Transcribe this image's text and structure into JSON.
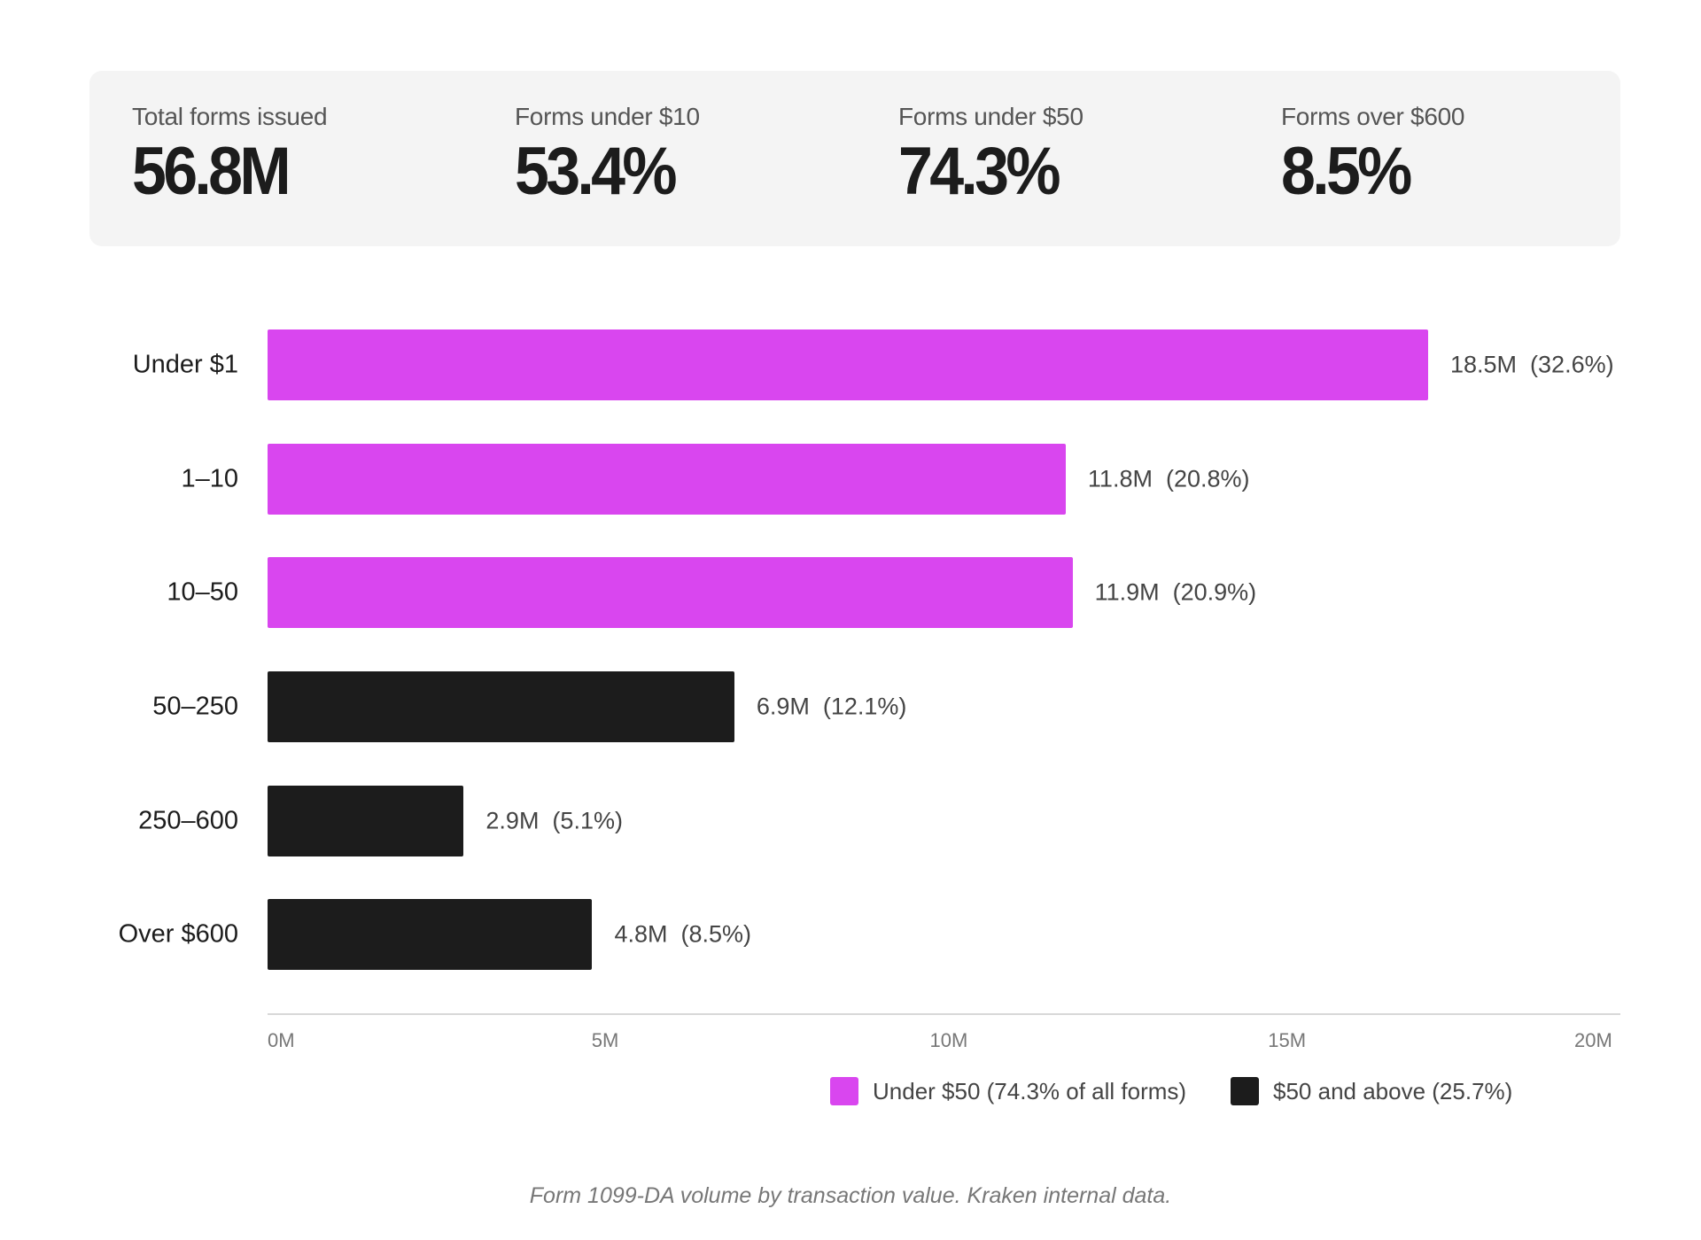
{
  "stats": [
    {
      "label": "Total forms issued",
      "value": "56.8M"
    },
    {
      "label": "Forms under $10",
      "value": "53.4%"
    },
    {
      "label": "Forms under $50",
      "value": "74.3%"
    },
    {
      "label": "Forms over $600",
      "value": "8.5%"
    }
  ],
  "colors": {
    "under_50": "#D946EF",
    "over_50": "#1C1C1C",
    "card_bg": "#F4F4F4"
  },
  "chart_data": {
    "type": "bar",
    "orientation": "horizontal",
    "categories": [
      "Under $1",
      "1–10",
      "10–50",
      "50–250",
      "250–600",
      "Over $600"
    ],
    "values": [
      18.5,
      11.8,
      11.9,
      6.9,
      2.9,
      4.8
    ],
    "groups": [
      "under_50",
      "under_50",
      "under_50",
      "over_50",
      "over_50",
      "over_50"
    ],
    "value_labels": [
      "18.5M  (32.6%)",
      "11.8M  (20.8%)",
      "11.9M  (20.9%)",
      "6.9M  (12.1%)",
      "2.9M  (5.1%)",
      "4.8M  (8.5%)"
    ],
    "xlim": [
      0,
      20
    ],
    "xticks": [
      "0M",
      "5M",
      "10M",
      "15M",
      "20M"
    ],
    "grid": false,
    "legend_position": "bottom-right",
    "legend": [
      {
        "key": "under_50",
        "label": "Under $50 (74.3% of all forms)"
      },
      {
        "key": "over_50",
        "label": "$50 and above (25.7%)"
      }
    ],
    "caption": "Form 1099-DA volume by transaction value. Kraken internal data."
  }
}
